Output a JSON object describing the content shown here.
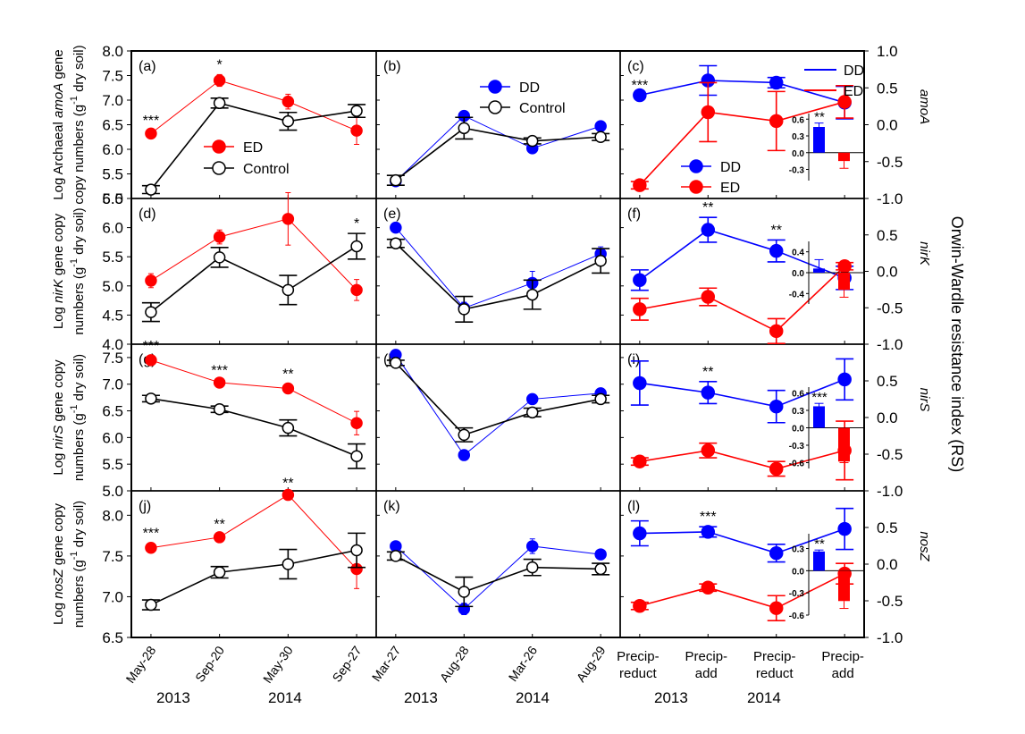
{
  "chart_data": {
    "type": "line",
    "title": "",
    "colors": {
      "ED": "#ff0000",
      "DD": "#0000ff",
      "Control": "#000000"
    },
    "left_axis_labels": [
      {
        "line1_pre": "Log Archaeal ",
        "line1_it": "amoA",
        "line1_post": " gene",
        "line2": "copy numbers (g",
        "sup": "-1",
        "line2_post": " dry soil)"
      },
      {
        "line1_pre": "Log ",
        "line1_it": "nirK",
        "line1_post": " gene copy",
        "line2": "numbers (g",
        "sup": "-1",
        "line2_post": " dry soil)"
      },
      {
        "line1_pre": "Log ",
        "line1_it": "nirS",
        "line1_post": " gene copy",
        "line2": "numbers (g",
        "sup": "-1",
        "line2_post": " dry soil)"
      },
      {
        "line1_pre": "Log ",
        "line1_it": "nosZ",
        "line1_post": " gene copy",
        "line2": "numbers (g",
        "sup": "-1",
        "line2_post": " dry soil)"
      }
    ],
    "right_axis_label": "Orwin-Wardle resistance index (RS)",
    "gene_labels": [
      "amoA",
      "nirK",
      "nirS",
      "nosZ"
    ],
    "right_ylim": [
      -1.0,
      1.0
    ],
    "right_ticks": [
      "1.0",
      "0.5",
      "0.0",
      "-0.5",
      "-1.0"
    ],
    "right_ticks_inner": [
      "0.5",
      "0.0",
      "-0.5",
      "-1.0"
    ],
    "col1_xticks": [
      "May-28",
      "Sep-20",
      "May-30",
      "Sep-27"
    ],
    "col2_xticks": [
      "Mar-27",
      "Aug-28",
      "Mar-26",
      "Aug-29"
    ],
    "col3_xticks": [
      [
        "Precip-",
        "reduct"
      ],
      [
        "Precip-",
        "add"
      ],
      [
        "Precip-",
        "reduct"
      ],
      [
        "Precip-",
        "add"
      ]
    ],
    "year_labels": [
      "2013",
      "2014"
    ],
    "legends": {
      "a": [
        {
          "name": "ED",
          "marker": "filled-red"
        },
        {
          "name": "Control",
          "marker": "open"
        }
      ],
      "b": [
        {
          "name": "DD",
          "marker": "filled-blue"
        },
        {
          "name": "Control",
          "marker": "open"
        }
      ],
      "c_lines": [
        {
          "name": "DD",
          "color": "blue"
        },
        {
          "name": "ED",
          "color": "red"
        }
      ],
      "c_markers": [
        {
          "name": "DD",
          "marker": "filled-blue"
        },
        {
          "name": "ED",
          "marker": "filled-red"
        }
      ]
    },
    "rows": [
      {
        "ylim": [
          5.0,
          8.0
        ],
        "yticks": [
          "8.0",
          "7.5",
          "7.0",
          "6.5",
          "6.0",
          "5.5",
          "5.0"
        ],
        "panels": {
          "left": {
            "label": "(a)",
            "series": [
              {
                "name": "ED",
                "values": [
                  6.32,
                  7.4,
                  6.97,
                  6.38
                ],
                "err": [
                  0.06,
                  0.12,
                  0.15,
                  0.28
                ]
              },
              {
                "name": "Control",
                "values": [
                  5.18,
                  6.94,
                  6.57,
                  6.78
                ],
                "err": [
                  0.08,
                  0.1,
                  0.18,
                  0.13
                ]
              }
            ],
            "sig": [
              {
                "i": 0,
                "text": "***"
              },
              {
                "i": 1,
                "text": "*"
              }
            ]
          },
          "mid": {
            "label": "(b)",
            "series": [
              {
                "name": "DD",
                "values": [
                  5.35,
                  6.68,
                  6.02,
                  6.47
                ],
                "err": [
                  0.05,
                  0.06,
                  0.05,
                  0.07
                ]
              },
              {
                "name": "Control",
                "values": [
                  5.37,
                  6.43,
                  6.17,
                  6.25
                ],
                "err": [
                  0.1,
                  0.22,
                  0.06,
                  0.07
                ]
              }
            ],
            "sig": []
          },
          "right": {
            "label": "(c)",
            "series": [
              {
                "name": "DD",
                "values": [
                  0.4,
                  0.6,
                  0.57,
                  0.3
                ],
                "err": [
                  0.0,
                  0.2,
                  0.07,
                  0.22
                ]
              },
              {
                "name": "ED",
                "values": [
                  -0.82,
                  0.17,
                  0.05,
                  0.31
                ],
                "err": [
                  0.05,
                  0.4,
                  0.4,
                  0.22
                ]
              }
            ],
            "sig": [
              {
                "i": 0,
                "text": "***"
              }
            ],
            "inset": {
              "yticks": [
                "0.6",
                "0.3",
                "0.0",
                "-0.3"
              ],
              "ylim": [
                -0.5,
                0.7
              ],
              "values": [
                {
                  "name": "DD",
                  "v": 0.46,
                  "e": 0.07
                },
                {
                  "name": "ED",
                  "v": -0.15,
                  "e": 0.13
                }
              ],
              "sig": "**"
            }
          }
        }
      },
      {
        "ylim": [
          4.0,
          6.5
        ],
        "yticks": [
          "6.5",
          "6.0",
          "5.5",
          "5.0",
          "4.5",
          "4.0"
        ],
        "panels": {
          "left": {
            "label": "(d)",
            "series": [
              {
                "name": "ED",
                "values": [
                  5.09,
                  5.84,
                  6.15,
                  4.93
                ],
                "err": [
                  0.12,
                  0.12,
                  0.45,
                  0.18
                ]
              },
              {
                "name": "Control",
                "values": [
                  4.55,
                  5.49,
                  4.93,
                  5.68
                ],
                "err": [
                  0.16,
                  0.17,
                  0.25,
                  0.22
                ]
              }
            ],
            "sig": [
              {
                "i": 3,
                "text": "*"
              }
            ]
          },
          "mid": {
            "label": "(e)",
            "series": [
              {
                "name": "DD",
                "values": [
                  6.0,
                  4.62,
                  5.05,
                  5.55
                ],
                "err": [
                  0.05,
                  0.1,
                  0.2,
                  0.12
                ]
              },
              {
                "name": "Control",
                "values": [
                  5.73,
                  4.6,
                  4.85,
                  5.43
                ],
                "err": [
                  0.07,
                  0.22,
                  0.25,
                  0.21
                ]
              }
            ],
            "sig": []
          },
          "right": {
            "label": "(f)",
            "series": [
              {
                "name": "DD",
                "values": [
                  -0.12,
                  0.57,
                  0.28,
                  -0.09
                ],
                "err": [
                  0.14,
                  0.17,
                  0.15,
                  0.16
                ]
              },
              {
                "name": "ED",
                "values": [
                  -0.52,
                  -0.35,
                  -0.82,
                  0.07
                ],
                "err": [
                  0.15,
                  0.12,
                  0.17,
                  0.05
                ]
              }
            ],
            "sig": [
              {
                "i": 1,
                "text": "**"
              },
              {
                "i": 2,
                "text": "**"
              }
            ],
            "inset": {
              "yticks": [
                "0.4",
                "0.0",
                "-0.4"
              ],
              "ylim": [
                -0.6,
                0.6
              ],
              "values": [
                {
                  "name": "DD",
                  "v": 0.08,
                  "e": 0.17
                },
                {
                  "name": "ED",
                  "v": -0.33,
                  "e": 0.14
                }
              ],
              "sig": ""
            }
          }
        }
      },
      {
        "ylim": [
          5.0,
          7.75
        ],
        "yticks": [
          "7.5",
          "7.0",
          "6.5",
          "6.0",
          "5.5",
          "5.0"
        ],
        "panels": {
          "left": {
            "label": "(g)",
            "series": [
              {
                "name": "ED",
                "values": [
                  7.45,
                  7.03,
                  6.92,
                  6.27
                ],
                "err": [
                  0.08,
                  0.04,
                  0.08,
                  0.22
                ]
              },
              {
                "name": "Control",
                "values": [
                  6.73,
                  6.53,
                  6.18,
                  5.65
                ],
                "err": [
                  0.06,
                  0.06,
                  0.15,
                  0.23
                ]
              }
            ],
            "sig": [
              {
                "i": 0,
                "text": "***"
              },
              {
                "i": 1,
                "text": "***"
              },
              {
                "i": 2,
                "text": "**"
              }
            ]
          },
          "mid": {
            "label": "(h)",
            "series": [
              {
                "name": "DD",
                "values": [
                  7.55,
                  5.67,
                  6.72,
                  6.83
                ],
                "err": [
                  0.05,
                  0.05,
                  0.05,
                  0.05
                ]
              },
              {
                "name": "Control",
                "values": [
                  7.4,
                  6.05,
                  6.47,
                  6.72
                ],
                "err": [
                  0.05,
                  0.13,
                  0.08,
                  0.07
                ]
              }
            ],
            "sig": []
          },
          "right": {
            "label": "(i)",
            "series": [
              {
                "name": "DD",
                "values": [
                  0.47,
                  0.34,
                  0.15,
                  0.52
                ],
                "err": [
                  0.3,
                  0.15,
                  0.22,
                  0.28
                ]
              },
              {
                "name": "ED",
                "values": [
                  -0.6,
                  -0.45,
                  -0.7,
                  -0.45
                ],
                "err": [
                  0.05,
                  0.1,
                  0.1,
                  0.4
                ]
              }
            ],
            "sig": [
              {
                "i": 1,
                "text": "**"
              }
            ],
            "inset": {
              "yticks": [
                "0.6",
                "0.3",
                "0.0",
                "-0.3",
                "-0.6"
              ],
              "ylim": [
                -0.7,
                0.7
              ],
              "values": [
                {
                  "name": "DD",
                  "v": 0.37,
                  "e": 0.05
                },
                {
                  "name": "ED",
                  "v": -0.58,
                  "e": 0.02
                }
              ],
              "sig": "***"
            }
          }
        }
      },
      {
        "ylim": [
          6.5,
          8.3
        ],
        "yticks": [
          "8.0",
          "7.5",
          "7.0",
          "6.5"
        ],
        "panels": {
          "left": {
            "label": "(j)",
            "series": [
              {
                "name": "ED",
                "values": [
                  7.6,
                  7.73,
                  8.25,
                  7.34
                ],
                "err": [
                  0.06,
                  0.04,
                  0.02,
                  0.24
                ]
              },
              {
                "name": "Control",
                "values": [
                  6.9,
                  7.3,
                  7.4,
                  7.57
                ],
                "err": [
                  0.06,
                  0.07,
                  0.18,
                  0.21
                ]
              }
            ],
            "sig": [
              {
                "i": 0,
                "text": "***"
              },
              {
                "i": 1,
                "text": "**"
              },
              {
                "i": 2,
                "text": "**"
              }
            ]
          },
          "mid": {
            "label": "(k)",
            "series": [
              {
                "name": "DD",
                "values": [
                  7.62,
                  6.85,
                  7.62,
                  7.52
                ],
                "err": [
                  0.03,
                  0.07,
                  0.09,
                  0.03
                ]
              },
              {
                "name": "Control",
                "values": [
                  7.5,
                  7.06,
                  7.36,
                  7.34
                ],
                "err": [
                  0.05,
                  0.18,
                  0.1,
                  0.07
                ]
              }
            ],
            "sig": []
          },
          "right": {
            "label": "(l)",
            "series": [
              {
                "name": "DD",
                "values": [
                  0.42,
                  0.44,
                  0.15,
                  0.48
                ],
                "err": [
                  0.17,
                  0.07,
                  0.12,
                  0.28
                ]
              },
              {
                "name": "ED",
                "values": [
                  -0.57,
                  -0.32,
                  -0.6,
                  -0.13
                ],
                "err": [
                  0.05,
                  0.05,
                  0.17,
                  0.14
                ]
              }
            ],
            "sig": [
              {
                "i": 1,
                "text": "***"
              }
            ],
            "inset": {
              "yticks": [
                "0.3",
                "0.0",
                "-0.3",
                "-0.6"
              ],
              "ylim": [
                -0.6,
                0.5
              ],
              "values": [
                {
                  "name": "DD",
                  "v": 0.26,
                  "e": 0.02
                },
                {
                  "name": "ED",
                  "v": -0.41,
                  "e": 0.1
                }
              ],
              "sig": "**"
            }
          }
        }
      }
    ]
  }
}
